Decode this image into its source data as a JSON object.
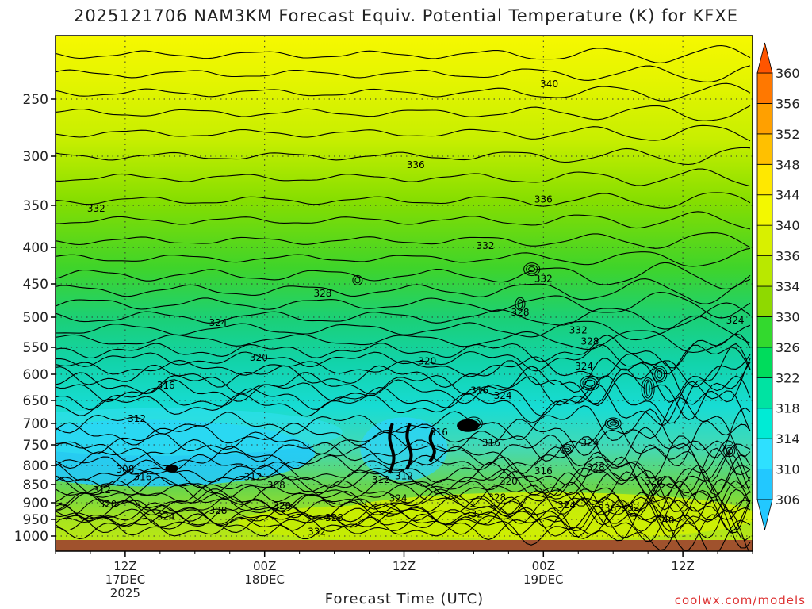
{
  "chart_data": {
    "type": "heatmap",
    "title": "2025121706 NAM3KM Forecast Equiv. Potential Temperature (K) for KFXE",
    "xlabel": "Forecast Time (UTC)",
    "ylabel": "",
    "x_ticks": [
      {
        "label": "12Z",
        "sub": "17DEC",
        "sub2": "2025",
        "hour": 6
      },
      {
        "label": "00Z",
        "sub": "18DEC",
        "sub2": "",
        "hour": 18
      },
      {
        "label": "12Z",
        "sub": "",
        "sub2": "",
        "hour": 30
      },
      {
        "label": "00Z",
        "sub": "19DEC",
        "sub2": "",
        "hour": 42
      },
      {
        "label": "12Z",
        "sub": "",
        "sub2": "",
        "hour": 54
      }
    ],
    "xlim": [
      0,
      60
    ],
    "y_ticks": [
      250,
      300,
      350,
      400,
      450,
      500,
      550,
      600,
      650,
      700,
      750,
      800,
      850,
      900,
      950,
      1000
    ],
    "ylim_hpa": [
      200,
      1020
    ],
    "colorbar": {
      "ticks": [
        306,
        310,
        314,
        318,
        322,
        326,
        330,
        334,
        336,
        340,
        344,
        348,
        352,
        356,
        360
      ],
      "colors": [
        "#22c8ff",
        "#2ee0ff",
        "#00ebd5",
        "#00e3a2",
        "#00dc5c",
        "#33d92e",
        "#8fd900",
        "#b9e800",
        "#d8f000",
        "#f3f800",
        "#ffe800",
        "#ffc000",
        "#ffa000",
        "#ff7800",
        "#ff5500"
      ]
    },
    "contour_labels": [
      {
        "value": "340",
        "hour": 42.5,
        "hpa": 238
      },
      {
        "value": "336",
        "hour": 31,
        "hpa": 309
      },
      {
        "value": "336",
        "hour": 42,
        "hpa": 344
      },
      {
        "value": "332",
        "hour": 3.5,
        "hpa": 354
      },
      {
        "value": "332",
        "hour": 37,
        "hpa": 398
      },
      {
        "value": "332",
        "hour": 42,
        "hpa": 443
      },
      {
        "value": "328",
        "hour": 23,
        "hpa": 464
      },
      {
        "value": "328",
        "hour": 40,
        "hpa": 493
      },
      {
        "value": "332",
        "hour": 45,
        "hpa": 522
      },
      {
        "value": "328",
        "hour": 46,
        "hpa": 540
      },
      {
        "value": "324",
        "hour": 14,
        "hpa": 509
      },
      {
        "value": "324",
        "hour": 58.5,
        "hpa": 505
      },
      {
        "value": "324",
        "hour": 45.5,
        "hpa": 585
      },
      {
        "value": "320",
        "hour": 17.5,
        "hpa": 569
      },
      {
        "value": "320",
        "hour": 32,
        "hpa": 576
      },
      {
        "value": "316",
        "hour": 9.5,
        "hpa": 621
      },
      {
        "value": "316",
        "hour": 36.5,
        "hpa": 631
      },
      {
        "value": "324",
        "hour": 38.5,
        "hpa": 641
      },
      {
        "value": "312",
        "hour": 7,
        "hpa": 690
      },
      {
        "value": "316",
        "hour": 33,
        "hpa": 720
      },
      {
        "value": "316",
        "hour": 37.5,
        "hpa": 745
      },
      {
        "value": "324",
        "hour": 46,
        "hpa": 745
      },
      {
        "value": "328",
        "hour": 46.5,
        "hpa": 805
      },
      {
        "value": "308",
        "hour": 6,
        "hpa": 810
      },
      {
        "value": "316",
        "hour": 7.5,
        "hpa": 830
      },
      {
        "value": "316",
        "hour": 42,
        "hpa": 815
      },
      {
        "value": "312",
        "hour": 17,
        "hpa": 830
      },
      {
        "value": "312",
        "hour": 28,
        "hpa": 838
      },
      {
        "value": "312",
        "hour": 30,
        "hpa": 828
      },
      {
        "value": "320",
        "hour": 39,
        "hpa": 842
      },
      {
        "value": "328",
        "hour": 51.5,
        "hpa": 842
      },
      {
        "value": "308",
        "hour": 19,
        "hpa": 852
      },
      {
        "value": "312",
        "hour": 4,
        "hpa": 865
      },
      {
        "value": "320",
        "hour": 4.5,
        "hpa": 905
      },
      {
        "value": "320",
        "hour": 19.5,
        "hpa": 910
      },
      {
        "value": "324",
        "hour": 29.5,
        "hpa": 888
      },
      {
        "value": "328",
        "hour": 38,
        "hpa": 886
      },
      {
        "value": "324",
        "hour": 44,
        "hpa": 907
      },
      {
        "value": "336",
        "hour": 47.5,
        "hpa": 917
      },
      {
        "value": "332",
        "hour": 49.5,
        "hpa": 914
      },
      {
        "value": "328",
        "hour": 14,
        "hpa": 924
      },
      {
        "value": "324",
        "hour": 9.5,
        "hpa": 942
      },
      {
        "value": "328",
        "hour": 24,
        "hpa": 945
      },
      {
        "value": "332",
        "hour": 36,
        "hpa": 934
      },
      {
        "value": "340",
        "hour": 52.5,
        "hpa": 952
      },
      {
        "value": "332",
        "hour": 22.5,
        "hpa": 987
      }
    ],
    "grid": true,
    "contour_interval": 2
  },
  "credit": "coolwx.com/models"
}
